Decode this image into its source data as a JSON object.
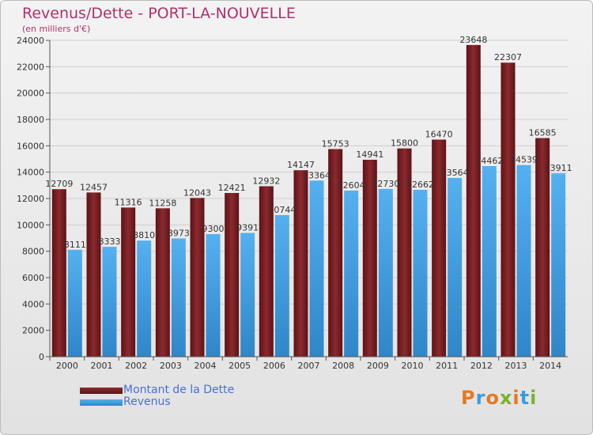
{
  "title": "Revenus/Dette - PORT-LA-NOUVELLE",
  "subtitle": "(en milliers d'€)",
  "logo": "Proxiti",
  "colors": {
    "dette": "#7a1f22",
    "revenus": "#3c9be0",
    "title": "#b0306a",
    "legend_text": "#4a6fd6"
  },
  "chart_data": {
    "type": "bar",
    "title": "Revenus/Dette - PORT-LA-NOUVELLE",
    "subtitle": "(en milliers d'€)",
    "xlabel": "",
    "ylabel": "",
    "ylim": [
      0,
      24000
    ],
    "yticks": [
      0,
      2000,
      4000,
      6000,
      8000,
      10000,
      12000,
      14000,
      16000,
      18000,
      20000,
      22000,
      24000
    ],
    "grid": true,
    "legend_position": "bottom-left",
    "categories": [
      "2000",
      "2001",
      "2002",
      "2003",
      "2004",
      "2005",
      "2006",
      "2007",
      "2008",
      "2009",
      "2010",
      "2011",
      "2012",
      "2013",
      "2014"
    ],
    "series": [
      {
        "name": "Montant de la Dette",
        "values": [
          12709,
          12457,
          11316,
          11258,
          12043,
          12421,
          12932,
          14147,
          15753,
          14941,
          15800,
          16470,
          23648,
          22307,
          16585
        ]
      },
      {
        "name": "Revenus",
        "values": [
          8111,
          8333,
          8810,
          8973,
          9300,
          9391,
          10744,
          13364,
          12604,
          12730,
          12662,
          13564,
          14462,
          14539,
          13911
        ]
      }
    ]
  }
}
